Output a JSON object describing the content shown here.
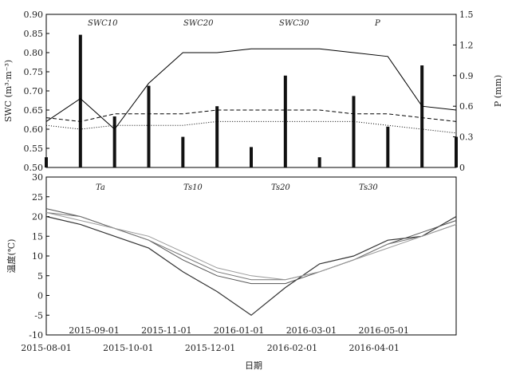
{
  "chart_data": [
    {
      "type": "line",
      "ylabel": "SWC (m³·m⁻³)",
      "y2label": "P (mm)",
      "ylim": [
        0.5,
        0.9
      ],
      "y2lim": [
        0,
        1.5
      ],
      "yticks": [
        "0.50",
        "0.55",
        "0.60",
        "0.65",
        "0.70",
        "0.75",
        "0.80",
        "0.85",
        "0.90"
      ],
      "y2ticks": [
        "0",
        "0.3",
        "0.6",
        "0.9",
        "1.2",
        "1.5"
      ],
      "legend": [
        "SWC10",
        "SWC20",
        "SWC30",
        "P"
      ],
      "series": [
        {
          "name": "SWC10",
          "values": [
            0.62,
            0.68,
            0.6,
            0.72,
            0.8,
            0.8,
            0.81,
            0.81,
            0.81,
            0.8,
            0.79,
            0.66,
            0.65
          ]
        },
        {
          "name": "SWC20",
          "values": [
            0.63,
            0.62,
            0.64,
            0.64,
            0.64,
            0.65,
            0.65,
            0.65,
            0.65,
            0.64,
            0.64,
            0.63,
            0.62
          ]
        },
        {
          "name": "SWC30",
          "values": [
            0.61,
            0.6,
            0.61,
            0.61,
            0.61,
            0.62,
            0.62,
            0.62,
            0.62,
            0.62,
            0.61,
            0.6,
            0.59
          ]
        }
      ],
      "precip": [
        0.1,
        1.3,
        0.5,
        0.8,
        0.3,
        0.6,
        0.2,
        0.9,
        0.1,
        0.7,
        0.4,
        1.0,
        0.3
      ]
    },
    {
      "type": "line",
      "ylabel": "温度(℃)",
      "ylim": [
        -10,
        30
      ],
      "yticks": [
        "-10",
        "-5",
        "0",
        "5",
        "10",
        "15",
        "20",
        "25",
        "30"
      ],
      "legend": [
        "Ta",
        "Ts10",
        "Ts20",
        "Ts30"
      ],
      "series": [
        {
          "name": "Ta",
          "values": [
            20,
            18,
            15,
            12,
            6,
            1,
            -5,
            2,
            8,
            10,
            14,
            15,
            20
          ]
        },
        {
          "name": "Ts10",
          "values": [
            22,
            20,
            17,
            14,
            9,
            5,
            3,
            3,
            6,
            9,
            13,
            16,
            19
          ]
        },
        {
          "name": "Ts20",
          "values": [
            21,
            20,
            17,
            14,
            10,
            6,
            4,
            4,
            6,
            9,
            13,
            15,
            18
          ]
        },
        {
          "name": "Ts30",
          "values": [
            21,
            19,
            17,
            15,
            11,
            7,
            5,
            4,
            6,
            9,
            12,
            15,
            18
          ]
        }
      ]
    }
  ],
  "xaxis": {
    "top_labels": [
      "2015-09-01",
      "2015-11-01",
      "2016-01-01",
      "2016-03-01",
      "2016-05-01"
    ],
    "bottom_labels": [
      "2015-08-01",
      "2015-10-01",
      "2015-12-01",
      "2016-02-01",
      "2016-04-01"
    ],
    "xlabel": "日期"
  }
}
